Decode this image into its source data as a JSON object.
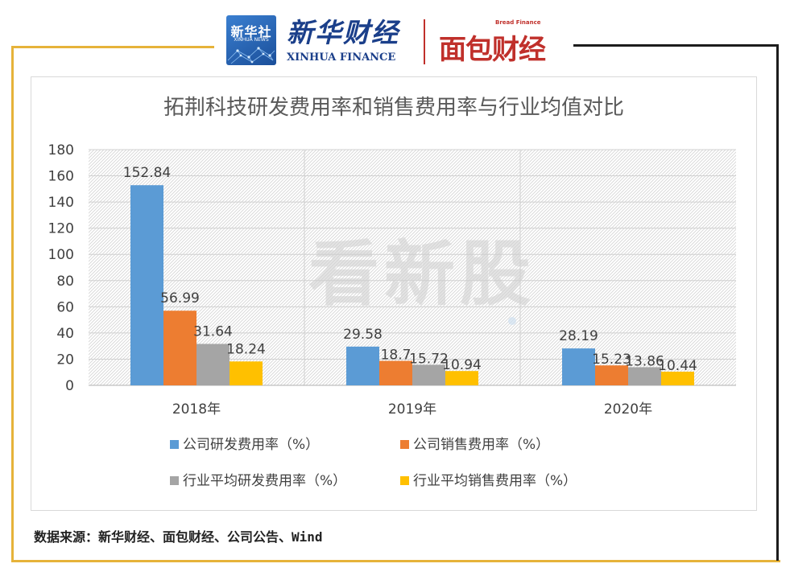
{
  "header": {
    "xinhua_logo_title": "新华社",
    "xinhua_logo_sub": "XINHUA NEWS",
    "xinhua_finance_zh": "新华财经",
    "xinhua_finance_en": "XINHUA FINANCE",
    "bread_finance_en": "Bread Finance",
    "bread_finance_zh": "面包财经"
  },
  "colors": {
    "gold_frame": "#e6b33a",
    "dark_frame": "#1c1c1c",
    "series_colors": [
      "#5b9bd5",
      "#ed7d31",
      "#a5a5a5",
      "#ffc000"
    ]
  },
  "watermark": "看新股",
  "chart_data": {
    "type": "bar",
    "title": "拓荆科技研发费用率和销售费用率与行业均值对比",
    "categories": [
      "2018年",
      "2019年",
      "2020年"
    ],
    "series": [
      {
        "name": "公司研发费用率（%）",
        "values": [
          152.84,
          29.58,
          28.19
        ],
        "labels": [
          "152.84",
          "29.58",
          "28.19"
        ]
      },
      {
        "name": "公司销售费用率（%）",
        "values": [
          56.99,
          18.7,
          15.23
        ],
        "labels": [
          "56.99",
          "18.7",
          "15.23"
        ]
      },
      {
        "name": "行业平均研发费用率（%）",
        "values": [
          31.64,
          15.72,
          13.86
        ],
        "labels": [
          "31.64",
          "15.72",
          "13.86"
        ]
      },
      {
        "name": "行业平均销售费用率（%）",
        "values": [
          18.24,
          10.94,
          10.44
        ],
        "labels": [
          "18.24",
          "10.94",
          "10.44"
        ]
      }
    ],
    "ylim": [
      0,
      180
    ],
    "yticks": [
      "0",
      "20",
      "40",
      "60",
      "80",
      "100",
      "120",
      "140",
      "160",
      "180"
    ],
    "xlabel": "",
    "ylabel": "",
    "grid": true,
    "legend_position": "bottom"
  },
  "footer": {
    "source": "数据来源：新华财经、面包财经、公司公告、Wind"
  }
}
